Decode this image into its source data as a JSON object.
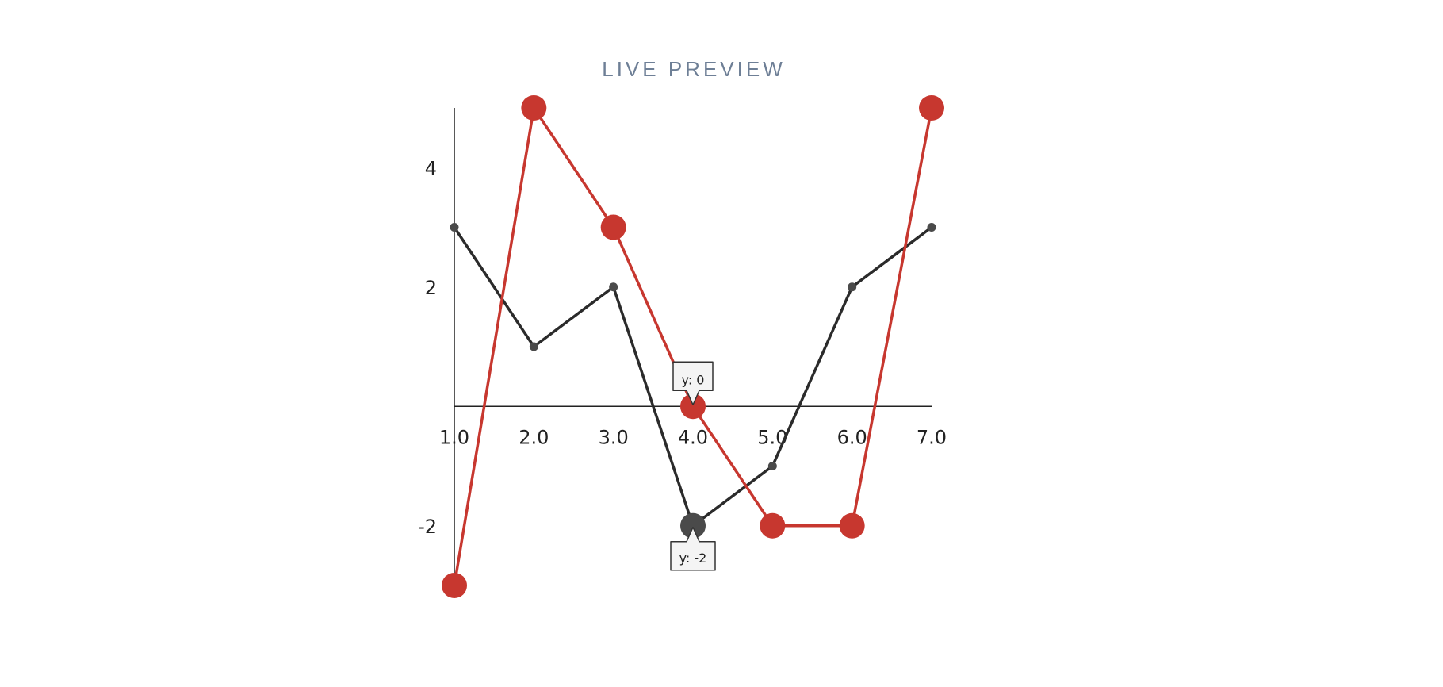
{
  "header": {
    "title": "LIVE PREVIEW"
  },
  "chart_data": {
    "type": "line",
    "title": "",
    "xlabel": "",
    "ylabel": "",
    "x": [
      1,
      2,
      3,
      4,
      5,
      6,
      7
    ],
    "x_tick_labels": [
      "1.0",
      "2.0",
      "3.0",
      "4.0",
      "5.0",
      "6.0",
      "7.0"
    ],
    "y_ticks": [
      4,
      2,
      -2
    ],
    "y_tick_labels": [
      "4",
      "2",
      "-2"
    ],
    "xlim": [
      1,
      7
    ],
    "ylim": [
      -3,
      5
    ],
    "grid": false,
    "legend": "none",
    "series": [
      {
        "values": [
          3,
          1,
          2,
          -2,
          -1,
          2,
          3
        ],
        "color": "#2b2b2b",
        "marker": "small"
      },
      {
        "values": [
          -3,
          5,
          3,
          0,
          -2,
          -2,
          5
        ],
        "color": "#c7372f",
        "marker": "large"
      }
    ],
    "tooltips": [
      {
        "text": "y: 0",
        "x": 4,
        "y": 0,
        "series": 1,
        "placement": "above"
      },
      {
        "text": "y: -2",
        "x": 4,
        "y": -2,
        "series": 0,
        "placement": "below"
      }
    ]
  }
}
